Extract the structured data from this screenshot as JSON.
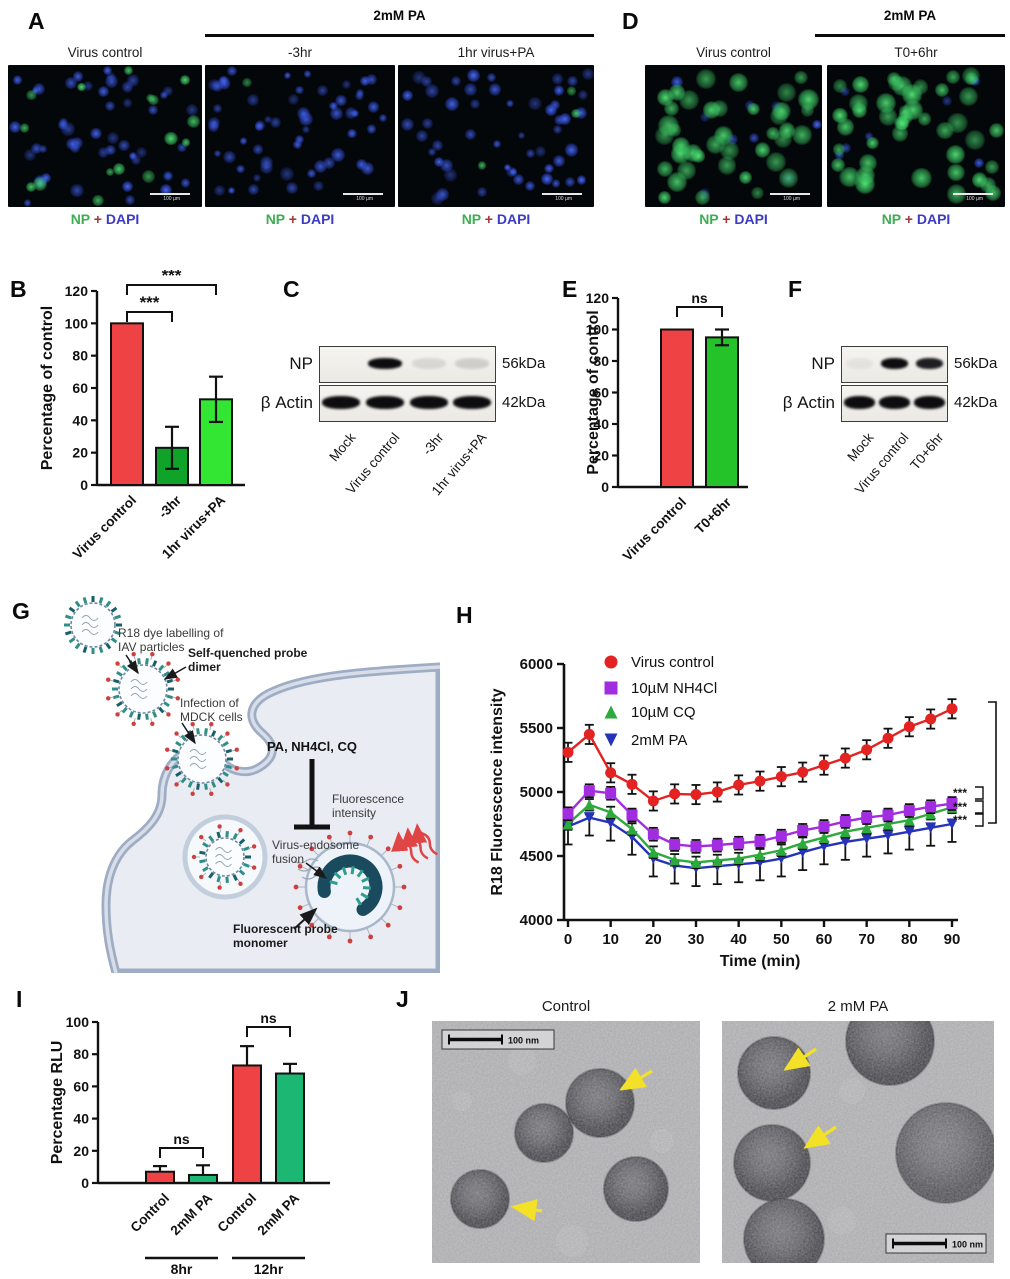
{
  "panels": {
    "A": {
      "label": "A",
      "treatment_header": "2mM PA",
      "columns": [
        "Virus control",
        "-3hr",
        "1hr virus+PA"
      ],
      "caption": {
        "np": "NP",
        "plus": "+",
        "dapi": "DAPI"
      },
      "scalebar": "100 µm",
      "cells": [
        {
          "blue": 46,
          "green": 16
        },
        {
          "blue": 58,
          "green": 1
        },
        {
          "blue": 52,
          "green": 3
        }
      ]
    },
    "B": {
      "label": "B"
    },
    "C": {
      "label": "C",
      "rows": [
        {
          "name": "NP",
          "kda": "56kDa"
        },
        {
          "name": "β Actin",
          "kda": "42kDa"
        }
      ],
      "lanes": [
        "Mock",
        "Virus control",
        "-3hr",
        "1hr virus+PA"
      ],
      "np_band_intensity": [
        0,
        1,
        0.1,
        0.14
      ],
      "actin_band_intensity": [
        1,
        1,
        1,
        1
      ]
    },
    "D": {
      "label": "D",
      "treatment_header": "2mM PA",
      "columns": [
        "Virus control",
        "T0+6hr"
      ],
      "caption": {
        "np": "NP",
        "plus": "+",
        "dapi": "DAPI"
      },
      "scalebar": "100 µm",
      "cells": [
        {
          "blue": 9,
          "green": 40
        },
        {
          "blue": 7,
          "green": 44
        }
      ]
    },
    "E": {
      "label": "E"
    },
    "F": {
      "label": "F",
      "rows": [
        {
          "name": "NP",
          "kda": "56kDa"
        },
        {
          "name": "β Actin",
          "kda": "42kDa"
        }
      ],
      "lanes": [
        "Mock",
        "Virus control",
        "T0+6hr"
      ],
      "np_band_intensity": [
        0.05,
        1,
        0.92
      ],
      "actin_band_intensity": [
        1,
        1,
        1
      ]
    },
    "G": {
      "label": "G",
      "annotations": {
        "r18_1": "R18 dye labelling of",
        "r18_2": "IAV particles",
        "sq_1": "Self-quenched probe",
        "sq_2": "dimer",
        "inf_1": "Infection of",
        "inf_2": "MDCK cells",
        "drugs": "PA, NH4Cl, CQ",
        "fi_1": "Fluorescence",
        "fi_2": "intensity",
        "vef_1": "Virus-endosome",
        "vef_2": "fusion",
        "fpm_1": "Fluorescent probe",
        "fpm_2": "monomer"
      }
    },
    "H": {
      "label": "H"
    },
    "I": {
      "label": "I"
    },
    "J": {
      "label": "J",
      "images": [
        {
          "title": "Control",
          "scalebar": "100 nm"
        },
        {
          "title": "2 mM PA",
          "scalebar": "100 nm"
        }
      ]
    }
  },
  "chart_data": [
    {
      "id": "B",
      "type": "bar",
      "ylabel": "Percentage of control",
      "ylim": [
        0,
        120
      ],
      "yticks": [
        0,
        20,
        40,
        60,
        80,
        100,
        120
      ],
      "categories": [
        "Virus control",
        "-3hr",
        "1hr virus+PA"
      ],
      "values": [
        100,
        23,
        53
      ],
      "errors": [
        0,
        13,
        14
      ],
      "colors": [
        "#ee4245",
        "#0fa32a",
        "#33e633"
      ],
      "significance": [
        {
          "from": 0,
          "to": 2,
          "label": "***"
        },
        {
          "from": 0,
          "to": 1,
          "label": "***"
        }
      ]
    },
    {
      "id": "E",
      "type": "bar",
      "ylabel": "Percentage of control",
      "ylim": [
        0,
        120
      ],
      "yticks": [
        0,
        20,
        40,
        60,
        80,
        100,
        120
      ],
      "categories": [
        "Virus control",
        "T0+6hr"
      ],
      "values": [
        100,
        95
      ],
      "errors": [
        0,
        5
      ],
      "colors": [
        "#ee4245",
        "#24c32a"
      ],
      "significance": [
        {
          "from": 0,
          "to": 1,
          "label": "ns"
        }
      ]
    },
    {
      "id": "H",
      "type": "line",
      "title": "",
      "ylabel": "R18 Fluorescence intensity",
      "xlabel": "Time (min)",
      "ylim": [
        4000,
        6000
      ],
      "yticks": [
        4000,
        4500,
        5000,
        5500,
        6000
      ],
      "xticks": [
        0,
        10,
        20,
        30,
        40,
        50,
        60,
        70,
        80,
        90
      ],
      "x": [
        0,
        5,
        10,
        15,
        20,
        25,
        30,
        35,
        40,
        45,
        50,
        55,
        60,
        65,
        70,
        75,
        80,
        85,
        90
      ],
      "series": [
        {
          "name": "Virus control",
          "color": "#e32222",
          "marker": "circle",
          "err_up": 75,
          "err_down": 75,
          "values": [
            5310,
            5450,
            5150,
            5060,
            4930,
            4985,
            4980,
            5000,
            5055,
            5085,
            5120,
            5155,
            5210,
            5265,
            5330,
            5420,
            5510,
            5570,
            5650
          ]
        },
        {
          "name": "10µM NH4Cl",
          "color": "#a22ce0",
          "marker": "square",
          "err_up": 50,
          "err_down": 50,
          "values": [
            4830,
            5010,
            4990,
            4820,
            4670,
            4590,
            4575,
            4585,
            4600,
            4615,
            4655,
            4700,
            4730,
            4770,
            4800,
            4820,
            4855,
            4885,
            4910
          ]
        },
        {
          "name": "10µM CQ",
          "color": "#2daa3c",
          "marker": "triangle-up",
          "err_up": 45,
          "err_down": 45,
          "values": [
            4750,
            4900,
            4840,
            4710,
            4530,
            4470,
            4450,
            4465,
            4480,
            4510,
            4545,
            4600,
            4645,
            4690,
            4720,
            4750,
            4780,
            4830,
            4880
          ]
        },
        {
          "name": "2mM PA",
          "color": "#2433b8",
          "marker": "triangle-down",
          "err_up": 25,
          "err_down": 140,
          "values": [
            4730,
            4800,
            4760,
            4650,
            4480,
            4425,
            4405,
            4420,
            4435,
            4450,
            4480,
            4530,
            4575,
            4610,
            4635,
            4660,
            4690,
            4720,
            4750
          ]
        }
      ],
      "legend_position": "top-left-inside",
      "significance_right": [
        "***",
        "***",
        "***"
      ]
    },
    {
      "id": "I",
      "type": "bar",
      "ylabel": "Percentage RLU",
      "ylim": [
        0,
        100
      ],
      "yticks": [
        0,
        20,
        40,
        60,
        80,
        100
      ],
      "categories": [
        "Control",
        "2mM PA",
        "Control",
        "2mM PA"
      ],
      "groups": [
        {
          "label": "8hr",
          "span": [
            0,
            1
          ]
        },
        {
          "label": "12hr",
          "span": [
            2,
            3
          ]
        }
      ],
      "values": [
        7,
        5,
        73,
        68
      ],
      "errors": [
        3.5,
        6,
        12,
        6
      ],
      "colors": [
        "#ee4245",
        "#1cb873",
        "#ee4245",
        "#1cb873"
      ],
      "significance": [
        {
          "from": 0,
          "to": 1,
          "label": "ns"
        },
        {
          "from": 2,
          "to": 3,
          "label": "ns"
        }
      ]
    }
  ]
}
